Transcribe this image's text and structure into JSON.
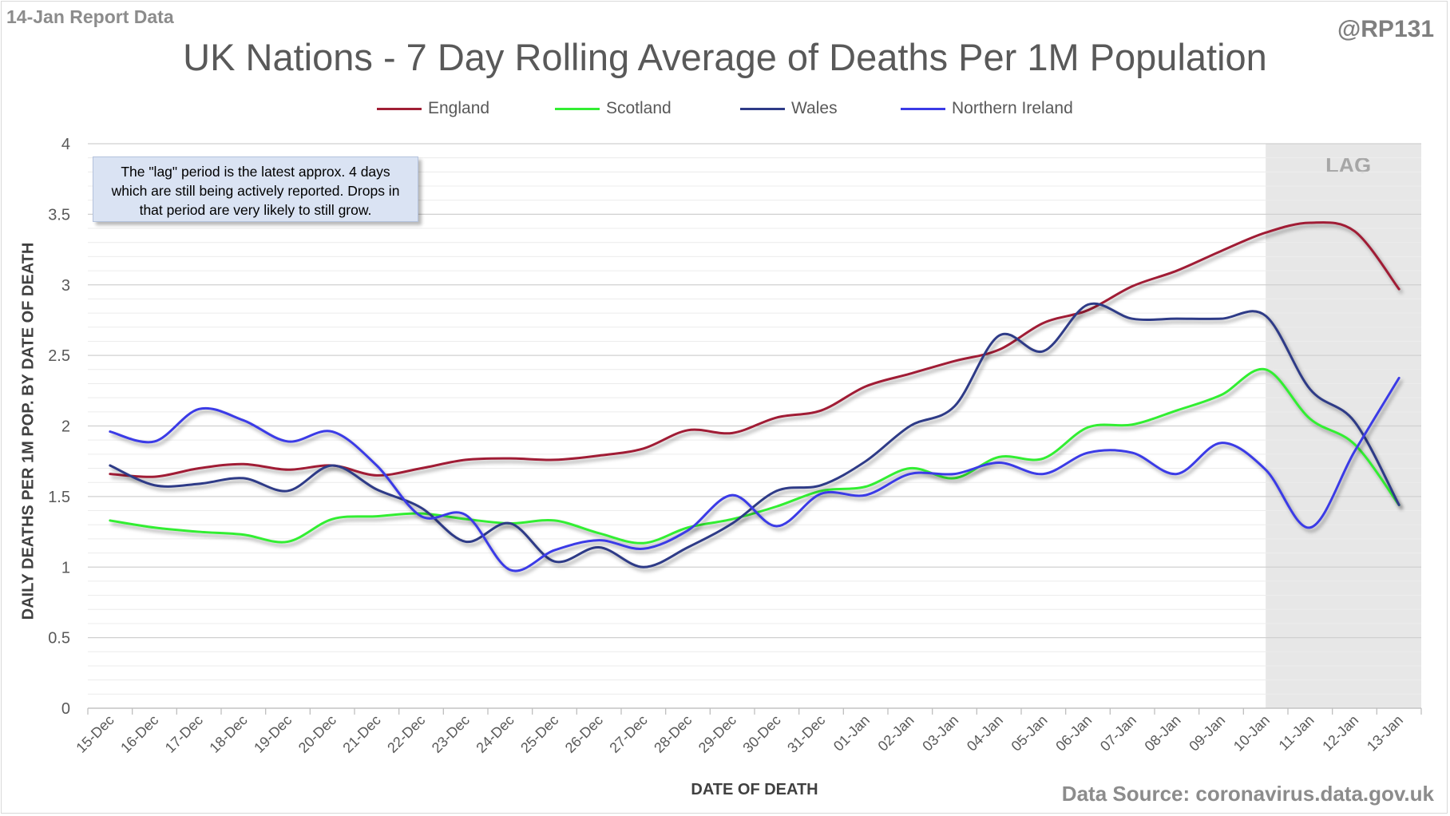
{
  "report_label": "14-Jan Report Data",
  "handle": "@RP131",
  "source": "Data Source: coronavirus.data.gov.uk",
  "annotation": "The \"lag\" period is the latest approx. 4 days which are still being actively reported.  Drops in that period are very likely to still grow.",
  "chart_data": {
    "type": "line",
    "title": "UK Nations - 7 Day Rolling Average of Deaths Per 1M Population",
    "xlabel": "DATE OF DEATH",
    "ylabel": "DAILY DEATHS PER 1M POP. BY DATE OF DEATH",
    "ylim": [
      0,
      4
    ],
    "yticks": [
      0,
      0.5,
      1,
      1.5,
      2,
      2.5,
      3,
      3.5,
      4
    ],
    "ytick_labels": [
      "0",
      "0.5",
      "1",
      "1.5",
      "2",
      "2.5",
      "3",
      "3.5",
      "4"
    ],
    "grid": true,
    "legend_position": "top",
    "categories": [
      "15-Dec",
      "16-Dec",
      "17-Dec",
      "18-Dec",
      "19-Dec",
      "20-Dec",
      "21-Dec",
      "22-Dec",
      "23-Dec",
      "24-Dec",
      "25-Dec",
      "26-Dec",
      "27-Dec",
      "28-Dec",
      "29-Dec",
      "30-Dec",
      "31-Dec",
      "01-Jan",
      "02-Jan",
      "03-Jan",
      "04-Jan",
      "05-Jan",
      "06-Jan",
      "07-Jan",
      "08-Jan",
      "09-Jan",
      "10-Jan",
      "11-Jan",
      "12-Jan",
      "13-Jan"
    ],
    "lag_region": {
      "label": "LAG",
      "start": "10-Jan",
      "end": "13-Jan",
      "color": "#e7e7e7"
    },
    "series": [
      {
        "name": "England",
        "color": "#a01e35",
        "values": [
          1.66,
          1.64,
          1.7,
          1.73,
          1.69,
          1.72,
          1.65,
          1.7,
          1.76,
          1.77,
          1.76,
          1.79,
          1.84,
          1.97,
          1.95,
          2.06,
          2.11,
          2.28,
          2.37,
          2.46,
          2.54,
          2.73,
          2.82,
          2.99,
          3.1,
          3.24,
          3.37,
          3.44,
          3.38,
          2.97
        ]
      },
      {
        "name": "Scotland",
        "color": "#33ee33",
        "values": [
          1.33,
          1.28,
          1.25,
          1.23,
          1.18,
          1.34,
          1.36,
          1.38,
          1.34,
          1.31,
          1.33,
          1.24,
          1.17,
          1.28,
          1.34,
          1.43,
          1.54,
          1.57,
          1.7,
          1.63,
          1.78,
          1.77,
          1.99,
          2.01,
          2.11,
          2.22,
          2.4,
          2.05,
          1.87,
          1.44
        ]
      },
      {
        "name": "Wales",
        "color": "#2e3a87",
        "values": [
          1.72,
          1.58,
          1.59,
          1.63,
          1.54,
          1.72,
          1.55,
          1.42,
          1.18,
          1.31,
          1.04,
          1.14,
          1.0,
          1.14,
          1.31,
          1.54,
          1.58,
          1.75,
          2.0,
          2.14,
          2.64,
          2.53,
          2.86,
          2.76,
          2.76,
          2.76,
          2.78,
          2.26,
          2.03,
          1.44
        ]
      },
      {
        "name": "Northern Ireland",
        "color": "#3a3ae6",
        "values": [
          1.96,
          1.89,
          2.12,
          2.04,
          1.89,
          1.96,
          1.72,
          1.36,
          1.37,
          0.98,
          1.12,
          1.19,
          1.13,
          1.26,
          1.51,
          1.29,
          1.52,
          1.51,
          1.66,
          1.66,
          1.74,
          1.66,
          1.81,
          1.81,
          1.66,
          1.88,
          1.69,
          1.28,
          1.82,
          2.34
        ]
      }
    ]
  }
}
